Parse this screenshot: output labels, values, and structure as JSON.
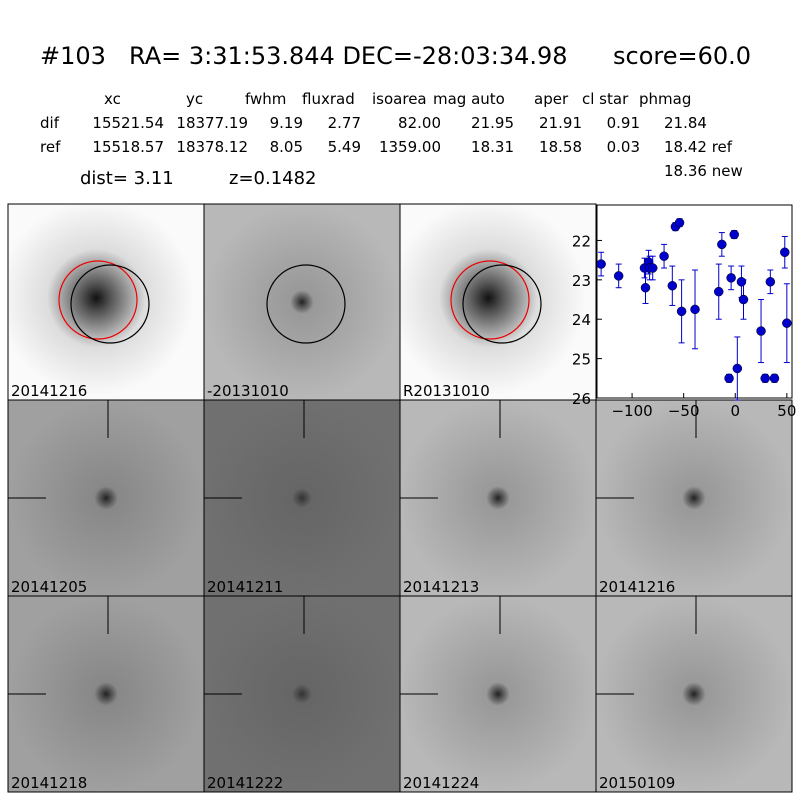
{
  "header": {
    "id": "#103",
    "coords": "RA= 3:31:53.844 DEC=-28:03:34.98",
    "score": "score=60.0"
  },
  "table": {
    "header": [
      "xc",
      "yc",
      "fwhm",
      "fluxrad",
      "isoarea",
      "mag auto",
      "aper",
      "cl star",
      "phmag"
    ],
    "rows": [
      [
        "dif",
        "15521.54",
        "18377.19",
        "9.19",
        "2.77",
        "82.00",
        "21.95",
        "21.91",
        "0.91",
        "21.84"
      ],
      [
        "ref",
        "15518.57",
        "18378.12",
        "8.05",
        "5.49",
        "1359.00",
        "18.31",
        "18.58",
        "0.03",
        "18.42 ref"
      ]
    ],
    "extra": "18.36 new"
  },
  "dist": "dist=  3.11",
  "z": "z=0.1482",
  "stamps": [
    {
      "label": "20141216"
    },
    {
      "label": "-20131010"
    },
    {
      "label": "R20131010"
    },
    {
      "label": null
    },
    {
      "label": "20141205"
    },
    {
      "label": "20141211"
    },
    {
      "label": "20141213"
    },
    {
      "label": "20141216",
      "color": "#ff0000"
    },
    {
      "label": "20141218"
    },
    {
      "label": "20141222"
    },
    {
      "label": "20141224"
    },
    {
      "label": "20150109"
    }
  ],
  "chart_data": {
    "type": "scatter",
    "x": [
      -130,
      -113,
      -88,
      -87,
      -84,
      -83,
      -80,
      -69,
      -61,
      -58,
      -54,
      -52,
      -39,
      -16,
      -13,
      -6,
      -4,
      -1,
      2,
      6,
      8,
      25,
      29,
      34,
      38,
      48,
      50
    ],
    "series": [
      {
        "color": "#0000cc",
        "values": [
          22.6,
          22.9,
          22.7,
          23.2,
          22.55,
          22.7,
          22.7,
          22.4,
          23.15,
          21.65,
          21.55,
          23.8,
          23.75,
          23.3,
          22.1,
          25.5,
          22.95,
          21.85,
          25.25,
          23.05,
          23.5,
          24.3,
          25.5,
          23.05,
          25.5,
          22.3,
          24.1
        ],
        "errors": [
          0.3,
          0.3,
          0.25,
          0.4,
          0.3,
          0.3,
          0.3,
          0.3,
          0.5,
          0.1,
          0.1,
          0.8,
          1.0,
          0.7,
          0.3,
          0.1,
          0.3,
          0.1,
          0.8,
          0.4,
          0.5,
          0.8,
          0.1,
          0.3,
          0.1,
          0.4,
          1.0
        ]
      }
    ],
    "xlim": [
      -134,
      55
    ],
    "ylim": [
      26,
      21.1
    ],
    "xticks": [
      {
        "value": -100,
        "label": "−100"
      },
      {
        "value": -50,
        "label": "−50"
      },
      0,
      50
    ],
    "yticks": [
      22,
      23,
      24,
      25,
      26
    ]
  }
}
